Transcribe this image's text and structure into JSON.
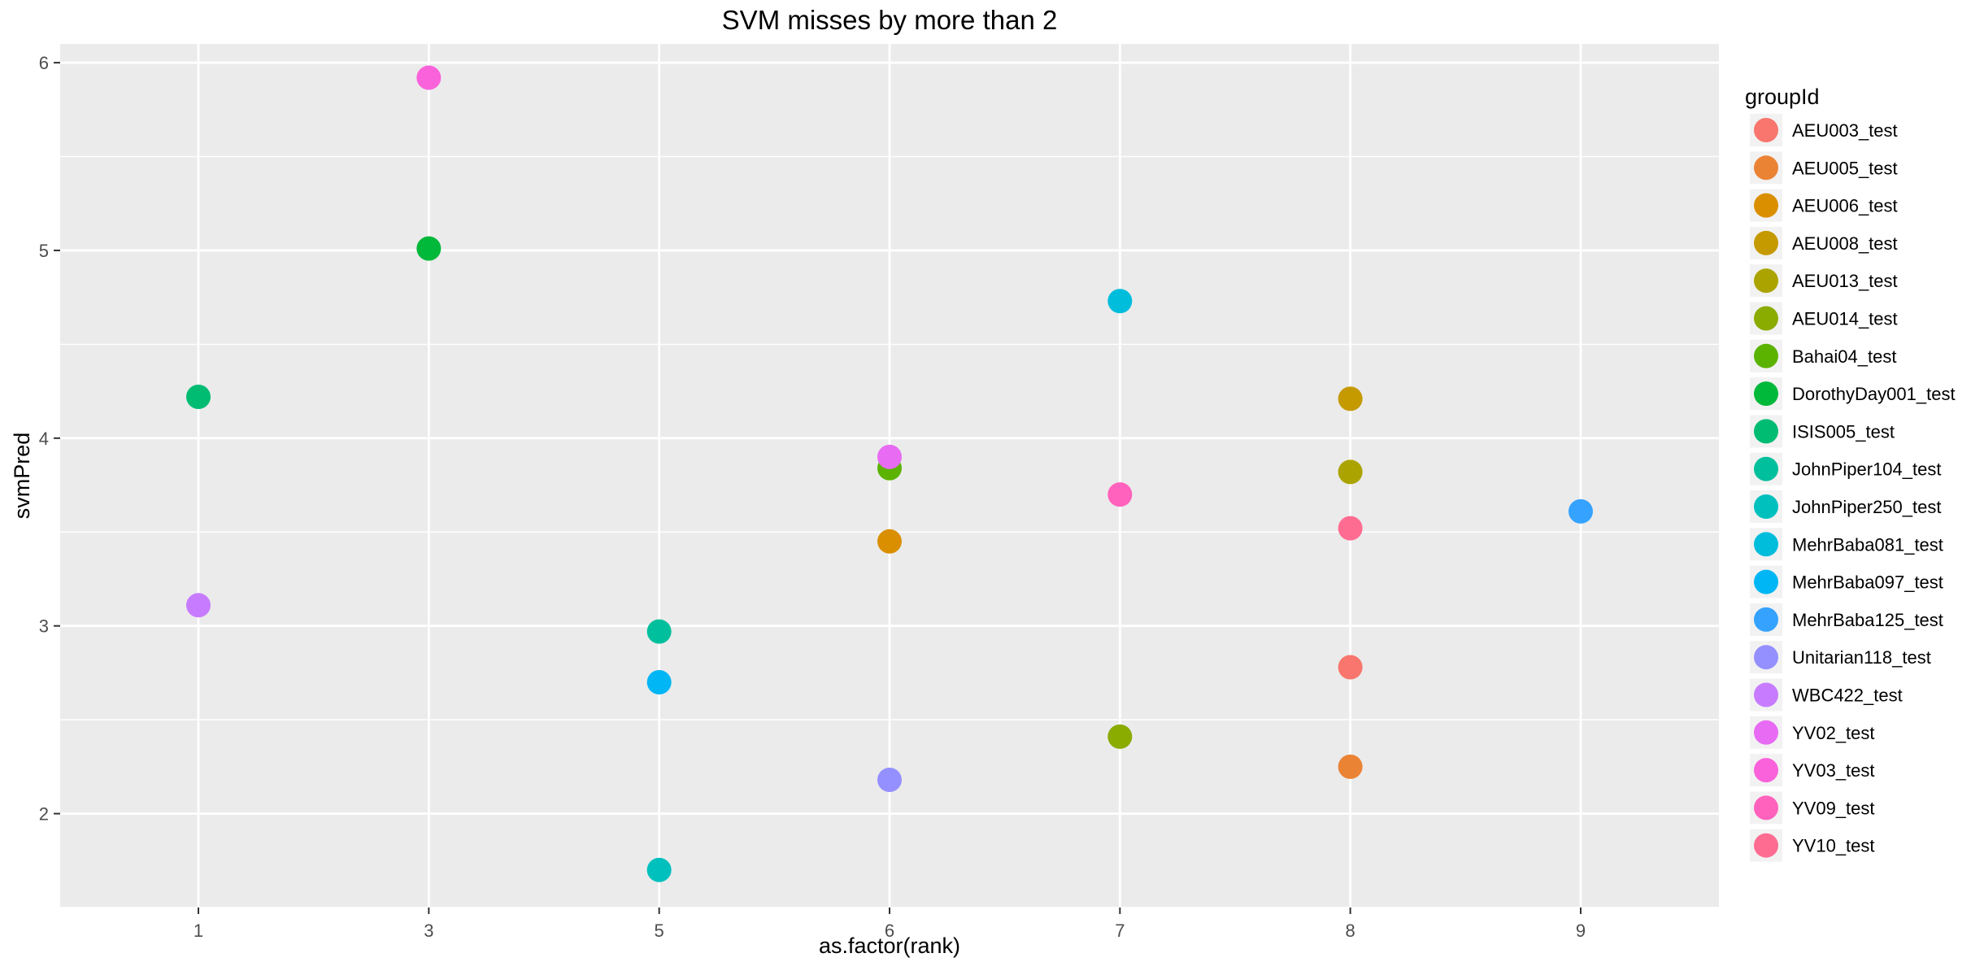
{
  "chart_data": {
    "type": "scatter",
    "title": "SVM misses by more than 2",
    "xlabel": "as.factor(rank)",
    "ylabel": "svmPred",
    "x_categories": [
      "1",
      "3",
      "5",
      "6",
      "7",
      "8",
      "9"
    ],
    "ylim": [
      1.5,
      6.1
    ],
    "y_ticks": [
      2,
      3,
      4,
      5,
      6
    ],
    "grid": true,
    "legend": {
      "title": "groupId",
      "position": "right"
    },
    "series": [
      {
        "name": "AEU003_test",
        "color": "#F8766D",
        "points": [
          {
            "x": "8",
            "y": 2.78
          }
        ]
      },
      {
        "name": "AEU005_test",
        "color": "#EB8335",
        "points": [
          {
            "x": "8",
            "y": 2.25
          }
        ]
      },
      {
        "name": "AEU006_test",
        "color": "#DA8F00",
        "points": [
          {
            "x": "6",
            "y": 3.45
          }
        ]
      },
      {
        "name": "AEU008_test",
        "color": "#C59900",
        "points": [
          {
            "x": "8",
            "y": 4.21
          }
        ]
      },
      {
        "name": "AEU013_test",
        "color": "#ABA300",
        "points": [
          {
            "x": "8",
            "y": 3.82
          }
        ]
      },
      {
        "name": "AEU014_test",
        "color": "#8AAB00",
        "points": [
          {
            "x": "7",
            "y": 2.41
          }
        ]
      },
      {
        "name": "Bahai04_test",
        "color": "#5BB300",
        "points": [
          {
            "x": "6",
            "y": 3.84
          }
        ]
      },
      {
        "name": "DorothyDay001_test",
        "color": "#00B83A",
        "points": [
          {
            "x": "3",
            "y": 5.01
          }
        ]
      },
      {
        "name": "ISIS005_test",
        "color": "#00BC73",
        "points": [
          {
            "x": "1",
            "y": 4.22
          }
        ]
      },
      {
        "name": "JohnPiper104_test",
        "color": "#00BF9C",
        "points": [
          {
            "x": "5",
            "y": 2.97
          }
        ]
      },
      {
        "name": "JohnPiper250_test",
        "color": "#00C0BE",
        "points": [
          {
            "x": "5",
            "y": 1.7
          }
        ]
      },
      {
        "name": "MehrBaba081_test",
        "color": "#00BDDC",
        "points": [
          {
            "x": "7",
            "y": 4.73
          }
        ]
      },
      {
        "name": "MehrBaba097_test",
        "color": "#00B6F5",
        "points": [
          {
            "x": "5",
            "y": 2.7
          }
        ]
      },
      {
        "name": "MehrBaba125_test",
        "color": "#35A2FF",
        "points": [
          {
            "x": "9",
            "y": 3.61
          }
        ]
      },
      {
        "name": "Unitarian118_test",
        "color": "#9590FF",
        "points": [
          {
            "x": "6",
            "y": 2.18
          }
        ]
      },
      {
        "name": "WBC422_test",
        "color": "#C77CFF",
        "points": [
          {
            "x": "1",
            "y": 3.11
          }
        ]
      },
      {
        "name": "YV02_test",
        "color": "#E76BF3",
        "points": [
          {
            "x": "6",
            "y": 3.9
          }
        ]
      },
      {
        "name": "YV03_test",
        "color": "#FA62DB",
        "points": [
          {
            "x": "3",
            "y": 5.92
          }
        ]
      },
      {
        "name": "YV09_test",
        "color": "#FF62BC",
        "points": [
          {
            "x": "7",
            "y": 3.7
          }
        ]
      },
      {
        "name": "YV10_test",
        "color": "#FF6C91",
        "points": [
          {
            "x": "8",
            "y": 3.52
          }
        ]
      }
    ]
  }
}
